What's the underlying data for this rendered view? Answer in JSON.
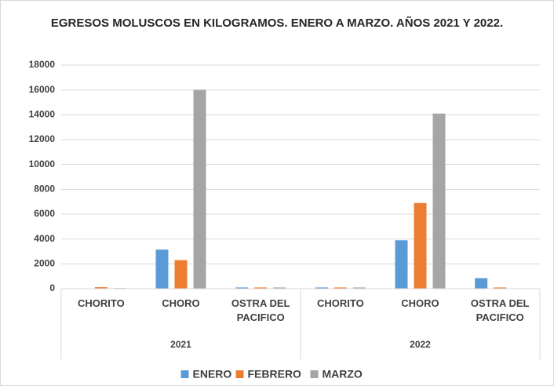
{
  "chart_data": {
    "type": "bar",
    "title": "EGRESOS MOLUSCOS EN KILOGRAMOS. ENERO A MARZO. AÑOS 2021 Y 2022.",
    "categories": [
      "CHORITO",
      "CHORO",
      "OSTRA DEL PACIFICO",
      "CHORITO",
      "CHORO",
      "OSTRA DEL PACIFICO"
    ],
    "groups": [
      {
        "name": "2021",
        "size": 3
      },
      {
        "name": "2022",
        "size": 3
      }
    ],
    "series": [
      {
        "name": "ENERO",
        "color": "#5b9bd5",
        "values": [
          30,
          3150,
          100,
          100,
          3900,
          850
        ]
      },
      {
        "name": "FEBRERO",
        "color": "#ed7d31",
        "values": [
          120,
          2300,
          100,
          100,
          6900,
          100
        ]
      },
      {
        "name": "MARZO",
        "color": "#a5a5a5",
        "values": [
          50,
          16000,
          100,
          100,
          14100,
          0
        ]
      }
    ],
    "ylim": [
      0,
      18000
    ],
    "yticks": [
      0,
      2000,
      4000,
      6000,
      8000,
      10000,
      12000,
      14000,
      16000,
      18000
    ],
    "grid": true,
    "legend": "bottom"
  }
}
